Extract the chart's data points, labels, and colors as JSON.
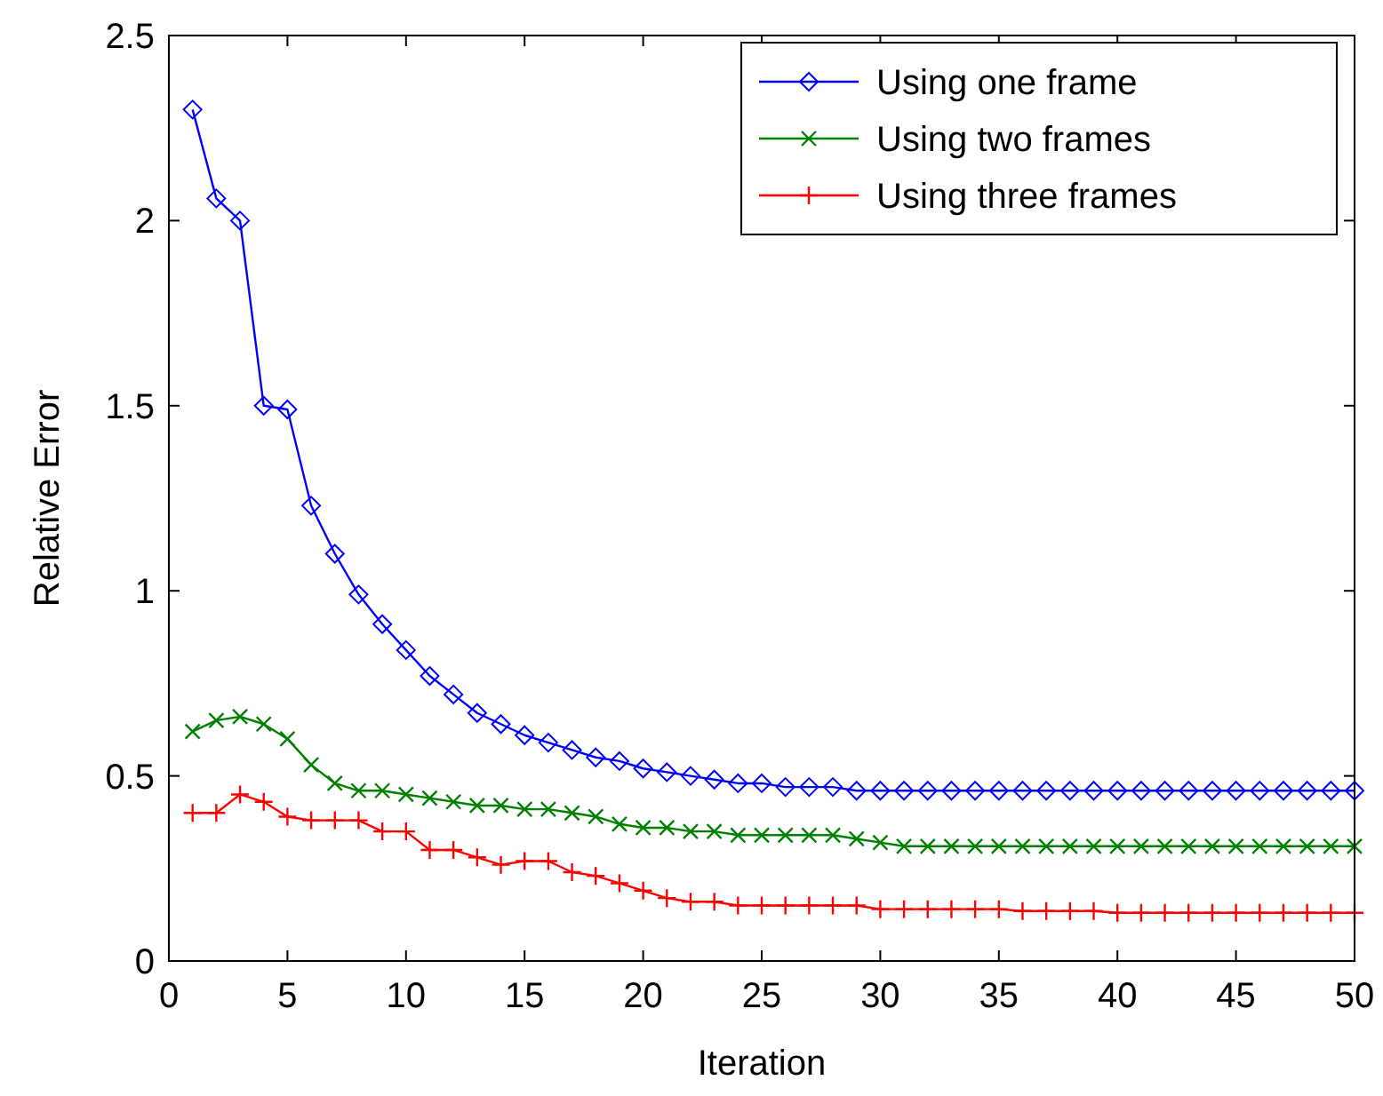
{
  "chart_data": {
    "type": "line",
    "xlabel": "Iteration",
    "ylabel": "Relative Error",
    "x": [
      1,
      2,
      3,
      4,
      5,
      6,
      7,
      8,
      9,
      10,
      11,
      12,
      13,
      14,
      15,
      16,
      17,
      18,
      19,
      20,
      21,
      22,
      23,
      24,
      25,
      26,
      27,
      28,
      29,
      30,
      31,
      32,
      33,
      34,
      35,
      36,
      37,
      38,
      39,
      40,
      41,
      42,
      43,
      44,
      45,
      46,
      47,
      48,
      49,
      50
    ],
    "series": [
      {
        "name": "Using one frame",
        "color": "#0000ff",
        "marker": "diamond",
        "values": [
          2.3,
          2.06,
          2.0,
          1.5,
          1.49,
          1.23,
          1.1,
          0.99,
          0.91,
          0.84,
          0.77,
          0.72,
          0.67,
          0.64,
          0.61,
          0.59,
          0.57,
          0.55,
          0.54,
          0.52,
          0.51,
          0.5,
          0.49,
          0.48,
          0.48,
          0.47,
          0.47,
          0.47,
          0.46,
          0.46,
          0.46,
          0.46,
          0.46,
          0.46,
          0.46,
          0.46,
          0.46,
          0.46,
          0.46,
          0.46,
          0.46,
          0.46,
          0.46,
          0.46,
          0.46,
          0.46,
          0.46,
          0.46,
          0.46,
          0.46
        ]
      },
      {
        "name": "Using two frames",
        "color": "#008000",
        "marker": "cross",
        "values": [
          0.62,
          0.65,
          0.66,
          0.64,
          0.6,
          0.53,
          0.48,
          0.46,
          0.46,
          0.45,
          0.44,
          0.43,
          0.42,
          0.42,
          0.41,
          0.41,
          0.4,
          0.39,
          0.37,
          0.36,
          0.36,
          0.35,
          0.35,
          0.34,
          0.34,
          0.34,
          0.34,
          0.34,
          0.33,
          0.32,
          0.31,
          0.31,
          0.31,
          0.31,
          0.31,
          0.31,
          0.31,
          0.31,
          0.31,
          0.31,
          0.31,
          0.31,
          0.31,
          0.31,
          0.31,
          0.31,
          0.31,
          0.31,
          0.31,
          0.31
        ]
      },
      {
        "name": "Using three frames",
        "color": "#ff0000",
        "marker": "cross",
        "values": [
          0.4,
          0.4,
          0.45,
          0.43,
          0.39,
          0.38,
          0.38,
          0.38,
          0.35,
          0.35,
          0.3,
          0.3,
          0.28,
          0.26,
          0.27,
          0.27,
          0.24,
          0.23,
          0.21,
          0.19,
          0.17,
          0.16,
          0.16,
          0.15,
          0.15,
          0.15,
          0.15,
          0.15,
          0.15,
          0.14,
          0.14,
          0.14,
          0.14,
          0.14,
          0.14,
          0.135,
          0.135,
          0.135,
          0.135,
          0.13,
          0.13,
          0.13,
          0.13,
          0.13,
          0.13,
          0.13,
          0.13,
          0.13,
          0.13,
          0.13
        ]
      }
    ],
    "xlim": [
      0,
      50
    ],
    "xticks": [
      0,
      5,
      10,
      15,
      20,
      25,
      30,
      35,
      40,
      45,
      50
    ],
    "ylim": [
      0,
      2.5
    ],
    "yticks": [
      0,
      0.5,
      1,
      1.5,
      2,
      2.5
    ],
    "grid": false,
    "legend": "top right"
  }
}
